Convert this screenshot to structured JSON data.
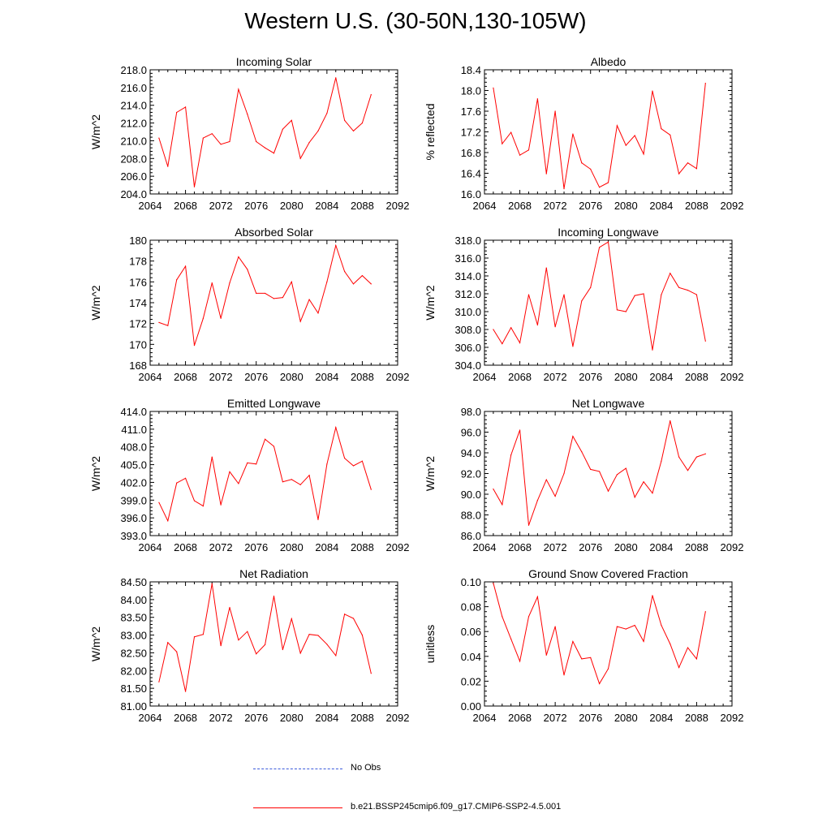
{
  "figure": {
    "title": "Western U.S. (30-50N,130-105W)"
  },
  "legend": {
    "obs_label": "No Obs",
    "obs_color": "#3b5bdb",
    "model_label": "b.e21.BSSP245cmip6.f09_g17.CMIP6-SSP2-4.5.001",
    "model_color": "#ff0000"
  },
  "chart_data": [
    {
      "type": "line",
      "title": "Incoming Solar",
      "ylabel": "W/m^2",
      "xlim": [
        2064,
        2092
      ],
      "ylim": [
        204,
        218
      ],
      "xticks": [
        2064,
        2068,
        2072,
        2076,
        2080,
        2084,
        2088,
        2092
      ],
      "yticks": [
        "204.0",
        "206.0",
        "208.0",
        "210.0",
        "212.0",
        "214.0",
        "216.0",
        "218.0"
      ],
      "ytick_values": [
        204,
        206,
        208,
        210,
        212,
        214,
        216,
        218
      ],
      "x": [
        2065,
        2066,
        2067,
        2068,
        2069,
        2070,
        2071,
        2072,
        2073,
        2074,
        2075,
        2076,
        2077,
        2078,
        2079,
        2080,
        2081,
        2082,
        2083,
        2084,
        2085,
        2086,
        2087,
        2088,
        2089
      ],
      "values": [
        210.3,
        207.1,
        213.2,
        213.8,
        204.8,
        210.3,
        210.8,
        209.6,
        209.9,
        215.8,
        213.0,
        209.9,
        209.2,
        208.6,
        211.3,
        212.3,
        208.0,
        209.8,
        211.1,
        213.1,
        217.1,
        212.3,
        211.1,
        212.0,
        215.2
      ]
    },
    {
      "type": "line",
      "title": "Albedo",
      "ylabel": "% reflected",
      "xlim": [
        2064,
        2092
      ],
      "ylim": [
        16.0,
        18.4
      ],
      "xticks": [
        2064,
        2068,
        2072,
        2076,
        2080,
        2084,
        2088,
        2092
      ],
      "yticks": [
        "16.0",
        "16.4",
        "16.8",
        "17.2",
        "17.6",
        "18.0",
        "18.4"
      ],
      "ytick_values": [
        16.0,
        16.4,
        16.8,
        17.2,
        17.6,
        18.0,
        18.4
      ],
      "x": [
        2065,
        2066,
        2067,
        2068,
        2069,
        2070,
        2071,
        2072,
        2073,
        2074,
        2075,
        2076,
        2077,
        2078,
        2079,
        2080,
        2081,
        2082,
        2083,
        2084,
        2085,
        2086,
        2087,
        2088,
        2089
      ],
      "values": [
        18.05,
        16.97,
        17.19,
        16.75,
        16.85,
        17.84,
        16.39,
        17.6,
        16.1,
        17.16,
        16.6,
        16.48,
        16.13,
        16.22,
        17.32,
        16.94,
        17.13,
        16.77,
        17.99,
        17.26,
        17.14,
        16.39,
        16.6,
        16.49,
        18.14
      ]
    },
    {
      "type": "line",
      "title": "Absorbed Solar",
      "ylabel": "W/m^2",
      "xlim": [
        2064,
        2092
      ],
      "ylim": [
        168,
        180
      ],
      "xticks": [
        2064,
        2068,
        2072,
        2076,
        2080,
        2084,
        2088,
        2092
      ],
      "yticks": [
        "168",
        "170",
        "172",
        "174",
        "176",
        "178",
        "180"
      ],
      "ytick_values": [
        168,
        170,
        172,
        174,
        176,
        178,
        180
      ],
      "x": [
        2065,
        2066,
        2067,
        2068,
        2069,
        2070,
        2071,
        2072,
        2073,
        2074,
        2075,
        2076,
        2077,
        2078,
        2079,
        2080,
        2081,
        2082,
        2083,
        2084,
        2085,
        2086,
        2087,
        2088,
        2089
      ],
      "values": [
        172.1,
        171.8,
        176.2,
        177.5,
        169.9,
        172.5,
        175.9,
        172.5,
        175.9,
        178.4,
        177.2,
        174.9,
        174.9,
        174.4,
        174.5,
        176.0,
        172.2,
        174.3,
        173.0,
        176.0,
        179.5,
        177.0,
        175.8,
        176.6,
        175.8
      ]
    },
    {
      "type": "line",
      "title": "Incoming Longwave",
      "ylabel": "W/m^2",
      "xlim": [
        2064,
        2092
      ],
      "ylim": [
        304,
        318
      ],
      "xticks": [
        2064,
        2068,
        2072,
        2076,
        2080,
        2084,
        2088,
        2092
      ],
      "yticks": [
        "304.0",
        "306.0",
        "308.0",
        "310.0",
        "312.0",
        "314.0",
        "316.0",
        "318.0"
      ],
      "ytick_values": [
        304,
        306,
        308,
        310,
        312,
        314,
        316,
        318
      ],
      "x": [
        2065,
        2066,
        2067,
        2068,
        2069,
        2070,
        2071,
        2072,
        2073,
        2074,
        2075,
        2076,
        2077,
        2078,
        2079,
        2080,
        2081,
        2082,
        2083,
        2084,
        2085,
        2086,
        2087,
        2088,
        2089
      ],
      "values": [
        308.0,
        306.4,
        308.2,
        306.5,
        311.9,
        308.5,
        314.9,
        308.3,
        311.9,
        306.1,
        311.2,
        312.7,
        317.2,
        317.8,
        310.2,
        310.0,
        311.8,
        312.0,
        305.7,
        311.9,
        314.3,
        312.7,
        312.4,
        311.9,
        306.7
      ]
    },
    {
      "type": "line",
      "title": "Emitted Longwave",
      "ylabel": "W/m^2",
      "xlim": [
        2064,
        2092
      ],
      "ylim": [
        393,
        414
      ],
      "xticks": [
        2064,
        2068,
        2072,
        2076,
        2080,
        2084,
        2088,
        2092
      ],
      "yticks": [
        "393.0",
        "396.0",
        "399.0",
        "402.0",
        "405.0",
        "408.0",
        "411.0",
        "414.0"
      ],
      "ytick_values": [
        393,
        396,
        399,
        402,
        405,
        408,
        411,
        414
      ],
      "x": [
        2065,
        2066,
        2067,
        2068,
        2069,
        2070,
        2071,
        2072,
        2073,
        2074,
        2075,
        2076,
        2077,
        2078,
        2079,
        2080,
        2081,
        2082,
        2083,
        2084,
        2085,
        2086,
        2087,
        2088,
        2089
      ],
      "values": [
        398.6,
        395.5,
        401.9,
        402.7,
        398.9,
        398.0,
        406.3,
        398.2,
        403.8,
        401.8,
        405.3,
        405.1,
        409.3,
        408.1,
        402.1,
        402.5,
        401.6,
        403.2,
        395.7,
        405.1,
        411.3,
        406.1,
        404.8,
        405.6,
        400.8
      ]
    },
    {
      "type": "line",
      "title": "Net Longwave",
      "ylabel": "W/m^2",
      "xlim": [
        2064,
        2092
      ],
      "ylim": [
        86,
        98
      ],
      "xticks": [
        2064,
        2068,
        2072,
        2076,
        2080,
        2084,
        2088,
        2092
      ],
      "yticks": [
        "86.0",
        "88.0",
        "90.0",
        "92.0",
        "94.0",
        "96.0",
        "98.0"
      ],
      "ytick_values": [
        86,
        88,
        90,
        92,
        94,
        96,
        98
      ],
      "x": [
        2065,
        2066,
        2067,
        2068,
        2069,
        2070,
        2071,
        2072,
        2073,
        2074,
        2075,
        2076,
        2077,
        2078,
        2079,
        2080,
        2081,
        2082,
        2083,
        2084,
        2085,
        2086,
        2087,
        2088,
        2089
      ],
      "values": [
        90.5,
        89.0,
        93.8,
        96.2,
        87.0,
        89.4,
        91.4,
        89.8,
        92.0,
        95.6,
        94.1,
        92.4,
        92.2,
        90.3,
        91.9,
        92.5,
        89.7,
        91.2,
        90.1,
        93.2,
        97.1,
        93.6,
        92.3,
        93.6,
        93.9
      ]
    },
    {
      "type": "line",
      "title": "Net Radiation",
      "ylabel": "W/m^2",
      "xlim": [
        2064,
        2092
      ],
      "ylim": [
        81.0,
        84.5
      ],
      "xticks": [
        2064,
        2068,
        2072,
        2076,
        2080,
        2084,
        2088,
        2092
      ],
      "yticks": [
        "81.00",
        "81.50",
        "82.00",
        "82.50",
        "83.00",
        "83.50",
        "84.00",
        "84.50"
      ],
      "ytick_values": [
        81.0,
        81.5,
        82.0,
        82.5,
        83.0,
        83.5,
        84.0,
        84.5
      ],
      "x": [
        2065,
        2066,
        2067,
        2068,
        2069,
        2070,
        2071,
        2072,
        2073,
        2074,
        2075,
        2076,
        2077,
        2078,
        2079,
        2080,
        2081,
        2082,
        2083,
        2084,
        2085,
        2086,
        2087,
        2088,
        2089
      ],
      "values": [
        81.68,
        82.79,
        82.53,
        81.41,
        82.95,
        83.02,
        84.45,
        82.7,
        83.78,
        82.86,
        83.1,
        82.47,
        82.73,
        84.1,
        82.59,
        83.46,
        82.49,
        83.02,
        82.99,
        82.74,
        82.42,
        83.59,
        83.47,
        83.0,
        81.92
      ]
    },
    {
      "type": "line",
      "title": "Ground Snow Covered Fraction",
      "ylabel": "unitless",
      "xlim": [
        2064,
        2092
      ],
      "ylim": [
        0.0,
        0.1
      ],
      "xticks": [
        2064,
        2068,
        2072,
        2076,
        2080,
        2084,
        2088,
        2092
      ],
      "yticks": [
        "0.00",
        "0.02",
        "0.04",
        "0.06",
        "0.08",
        "0.10"
      ],
      "ytick_values": [
        0.0,
        0.02,
        0.04,
        0.06,
        0.08,
        0.1
      ],
      "x": [
        2065,
        2066,
        2067,
        2068,
        2069,
        2070,
        2071,
        2072,
        2073,
        2074,
        2075,
        2076,
        2077,
        2078,
        2079,
        2080,
        2081,
        2082,
        2083,
        2084,
        2085,
        2086,
        2087,
        2088,
        2089
      ],
      "values": [
        0.099,
        0.072,
        0.054,
        0.036,
        0.072,
        0.088,
        0.041,
        0.064,
        0.025,
        0.052,
        0.038,
        0.039,
        0.018,
        0.03,
        0.064,
        0.062,
        0.065,
        0.052,
        0.089,
        0.065,
        0.05,
        0.031,
        0.047,
        0.038,
        0.076
      ]
    }
  ]
}
